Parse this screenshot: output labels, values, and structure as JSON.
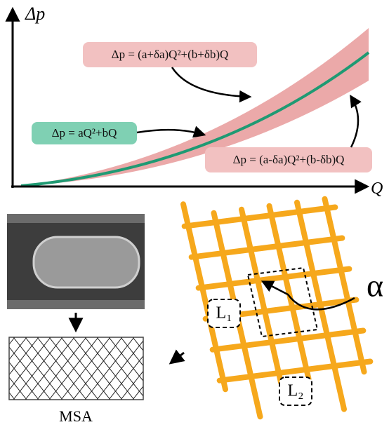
{
  "plot": {
    "y_label": "Δp",
    "x_label": "Q"
  },
  "equations": {
    "upper": "Δp = (a+δa)Q²+(b+δb)Q",
    "nominal": "Δp = aQ²+bQ",
    "lower": "Δp = (a-δa)Q²+(b-δb)Q"
  },
  "image": {
    "caption": "MSA"
  },
  "lattice": {
    "angle_label": "α",
    "lengths": [
      "L₁",
      "L₂"
    ]
  }
}
